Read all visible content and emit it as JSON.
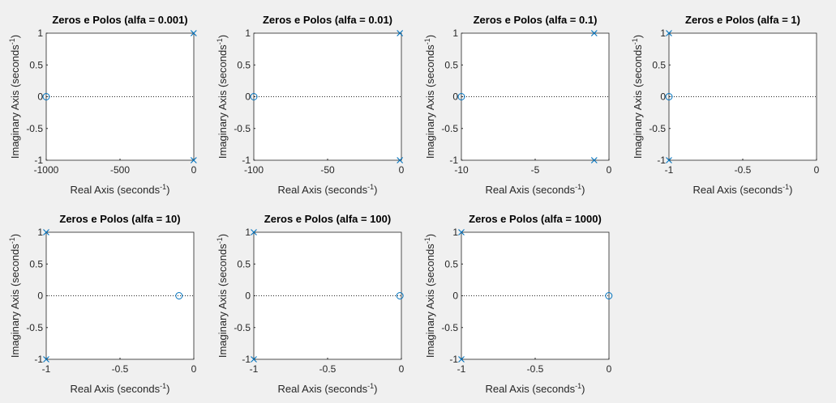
{
  "chart_data": [
    {
      "type": "scatter",
      "title": "Zeros e Polos (alfa = 0.001)",
      "xlabel": "Real Axis (seconds",
      "ylabel": "Imaginary Axis (seconds",
      "label_exponent": "-1",
      "label_close": ")",
      "xlim": [
        -1000,
        0
      ],
      "ylim": [
        -1,
        1
      ],
      "xticks": [
        "-1000",
        "-500",
        "0"
      ],
      "yticks": [
        "-1",
        "-0.5",
        "0",
        "0.5",
        "1"
      ],
      "poles": [
        {
          "re": -1,
          "im": 1
        },
        {
          "re": -1,
          "im": -1
        }
      ],
      "zeros": [
        {
          "re": -1000,
          "im": 0
        }
      ],
      "marker_color": "#0072bd"
    },
    {
      "type": "scatter",
      "title": "Zeros e Polos (alfa = 0.01)",
      "xlabel": "Real Axis (seconds",
      "ylabel": "Imaginary Axis (seconds",
      "label_exponent": "-1",
      "label_close": ")",
      "xlim": [
        -100,
        0
      ],
      "ylim": [
        -1,
        1
      ],
      "xticks": [
        "-100",
        "-50",
        "0"
      ],
      "yticks": [
        "-1",
        "-0.5",
        "0",
        "0.5",
        "1"
      ],
      "poles": [
        {
          "re": -1,
          "im": 1
        },
        {
          "re": -1,
          "im": -1
        }
      ],
      "zeros": [
        {
          "re": -100,
          "im": 0
        }
      ],
      "marker_color": "#0072bd"
    },
    {
      "type": "scatter",
      "title": "Zeros e Polos (alfa = 0.1)",
      "xlabel": "Real Axis (seconds",
      "ylabel": "Imaginary Axis (seconds",
      "label_exponent": "-1",
      "label_close": ")",
      "xlim": [
        -10,
        0
      ],
      "ylim": [
        -1,
        1
      ],
      "xticks": [
        "-10",
        "-5",
        "0"
      ],
      "yticks": [
        "-1",
        "-0.5",
        "0",
        "0.5",
        "1"
      ],
      "poles": [
        {
          "re": -1,
          "im": 1
        },
        {
          "re": -1,
          "im": -1
        }
      ],
      "zeros": [
        {
          "re": -10,
          "im": 0
        }
      ],
      "marker_color": "#0072bd"
    },
    {
      "type": "scatter",
      "title": "Zeros e Polos (alfa = 1)",
      "xlabel": "Real Axis (seconds",
      "ylabel": "Imaginary Axis (seconds",
      "label_exponent": "-1",
      "label_close": ")",
      "xlim": [
        -1,
        0
      ],
      "ylim": [
        -1,
        1
      ],
      "xticks": [
        "-1",
        "-0.5",
        "0"
      ],
      "yticks": [
        "-1",
        "-0.5",
        "0",
        "0.5",
        "1"
      ],
      "poles": [
        {
          "re": -1,
          "im": 1
        },
        {
          "re": -1,
          "im": -1
        }
      ],
      "zeros": [
        {
          "re": -1,
          "im": 0
        }
      ],
      "marker_color": "#0072bd"
    },
    {
      "type": "scatter",
      "title": "Zeros e Polos (alfa = 10)",
      "xlabel": "Real Axis (seconds",
      "ylabel": "Imaginary Axis (seconds",
      "label_exponent": "-1",
      "label_close": ")",
      "xlim": [
        -1,
        0
      ],
      "ylim": [
        -1,
        1
      ],
      "xticks": [
        "-1",
        "-0.5",
        "0"
      ],
      "yticks": [
        "-1",
        "-0.5",
        "0",
        "0.5",
        "1"
      ],
      "poles": [
        {
          "re": -1,
          "im": 1
        },
        {
          "re": -1,
          "im": -1
        }
      ],
      "zeros": [
        {
          "re": -0.1,
          "im": 0
        }
      ],
      "marker_color": "#0072bd"
    },
    {
      "type": "scatter",
      "title": "Zeros e Polos (alfa = 100)",
      "xlabel": "Real Axis (seconds",
      "ylabel": "Imaginary Axis (seconds",
      "label_exponent": "-1",
      "label_close": ")",
      "xlim": [
        -1,
        0
      ],
      "ylim": [
        -1,
        1
      ],
      "xticks": [
        "-1",
        "-0.5",
        "0"
      ],
      "yticks": [
        "-1",
        "-0.5",
        "0",
        "0.5",
        "1"
      ],
      "poles": [
        {
          "re": -1,
          "im": 1
        },
        {
          "re": -1,
          "im": -1
        }
      ],
      "zeros": [
        {
          "re": -0.01,
          "im": 0
        }
      ],
      "marker_color": "#0072bd"
    },
    {
      "type": "scatter",
      "title": "Zeros e Polos (alfa = 1000)",
      "xlabel": "Real Axis (seconds",
      "ylabel": "Imaginary Axis (seconds",
      "label_exponent": "-1",
      "label_close": ")",
      "xlim": [
        -1,
        0
      ],
      "ylim": [
        -1,
        1
      ],
      "xticks": [
        "-1",
        "-0.5",
        "0"
      ],
      "yticks": [
        "-1",
        "-0.5",
        "0",
        "0.5",
        "1"
      ],
      "poles": [
        {
          "re": -1,
          "im": 1
        },
        {
          "re": -1,
          "im": -1
        }
      ],
      "zeros": [
        {
          "re": -0.001,
          "im": 0
        }
      ],
      "marker_color": "#0072bd"
    }
  ]
}
